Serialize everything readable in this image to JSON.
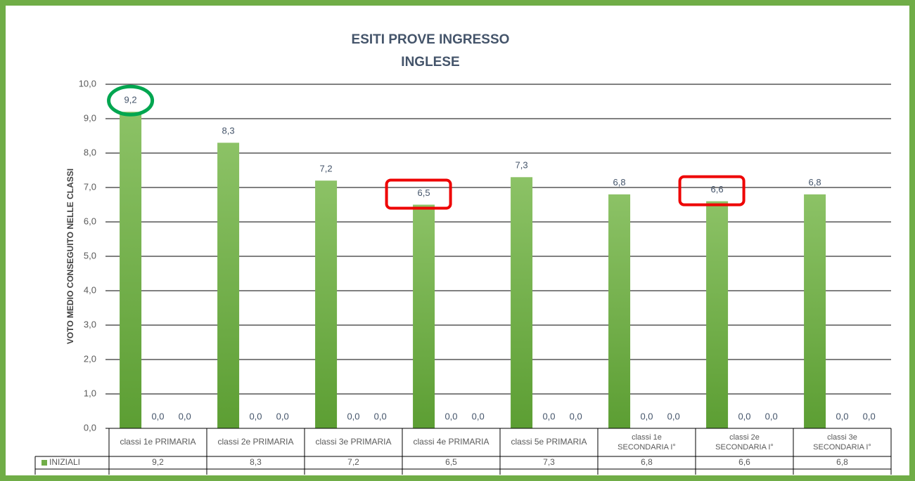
{
  "chart_data": {
    "type": "bar",
    "title": [
      "ESITI PROVE INGRESSO",
      "INGLESE"
    ],
    "y_label": "VOTO MEDIO CONSEGUITO NELLE CLASSI",
    "categories": [
      [
        "classi 1e PRIMARIA"
      ],
      [
        "classi 2e PRIMARIA"
      ],
      [
        "classi 3e PRIMARIA"
      ],
      [
        "classi 4e PRIMARIA"
      ],
      [
        "classi 5e PRIMARIA"
      ],
      [
        "classi 1e",
        "SECONDARIA I°"
      ],
      [
        "classi 2e",
        "SECONDARIA I°"
      ],
      [
        "classi 3e",
        "SECONDARIA I°"
      ]
    ],
    "series": [
      {
        "name": "INIZIALI",
        "color": "#70ad47",
        "values": [
          9.2,
          8.3,
          7.2,
          6.5,
          7.3,
          6.8,
          6.6,
          6.8
        ],
        "value_labels": [
          "9,2",
          "8,3",
          "7,2",
          "6,5",
          "7,3",
          "6,8",
          "6,6",
          "6,8"
        ]
      },
      {
        "color": "#5b9bd5",
        "values": [
          0,
          0,
          0,
          0,
          0,
          0,
          0,
          0
        ],
        "value_labels": [
          "0,0",
          "0,0",
          "0,0",
          "0,0",
          "0,0",
          "0,0",
          "0,0",
          "0,0"
        ]
      },
      {
        "color": "#a5a5a5",
        "values": [
          0,
          0,
          0,
          0,
          0,
          0,
          0,
          0
        ],
        "value_labels": [
          "0,0",
          "0,0",
          "0,0",
          "0,0",
          "0,0",
          "0,0",
          "0,0",
          "0,0"
        ]
      }
    ],
    "ylim": [
      0,
      10
    ],
    "yticks": [
      {
        "value": 0,
        "label": "0,0"
      },
      {
        "value": 1,
        "label": "1,0"
      },
      {
        "value": 2,
        "label": "2,0"
      },
      {
        "value": 3,
        "label": "3,0"
      },
      {
        "value": 4,
        "label": "4,0"
      },
      {
        "value": 5,
        "label": "5,0"
      },
      {
        "value": 6,
        "label": "6,0"
      },
      {
        "value": 7,
        "label": "7,0"
      },
      {
        "value": 8,
        "label": "8,0"
      },
      {
        "value": 9,
        "label": "9,0"
      },
      {
        "value": 10,
        "label": "10,0"
      }
    ],
    "grid": true,
    "data_table": true
  }
}
